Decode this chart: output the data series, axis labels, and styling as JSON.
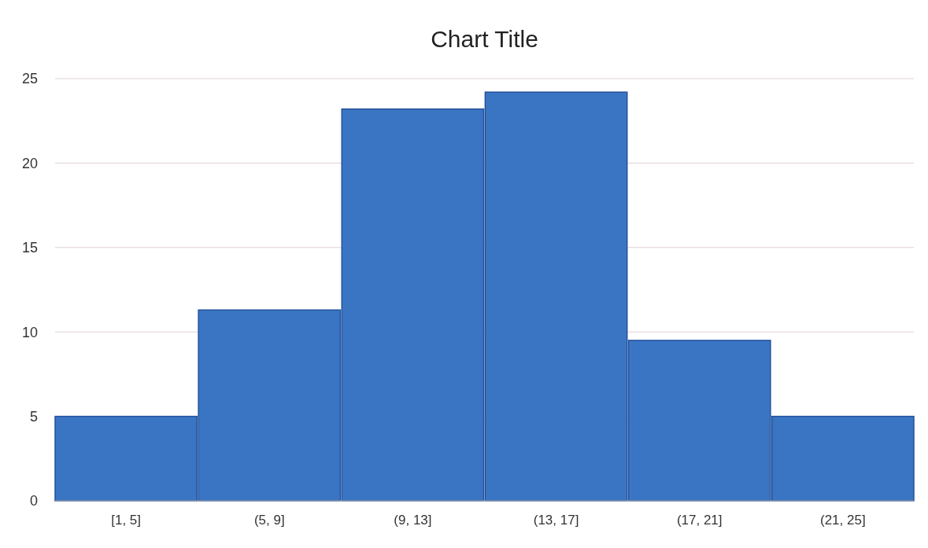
{
  "chart_data": {
    "type": "bar",
    "title": "Chart Title",
    "categories": [
      "[1, 5]",
      "(5, 9]",
      "(9, 13]",
      "(13, 17]",
      "(17, 21]",
      "(21, 25]"
    ],
    "values": [
      5,
      11.3,
      23.2,
      24.2,
      9.5,
      5
    ],
    "color": "#3a75c4",
    "ylim": [
      0,
      25
    ],
    "yticks": [
      0,
      5,
      10,
      15,
      20,
      25
    ],
    "grid": "y"
  }
}
